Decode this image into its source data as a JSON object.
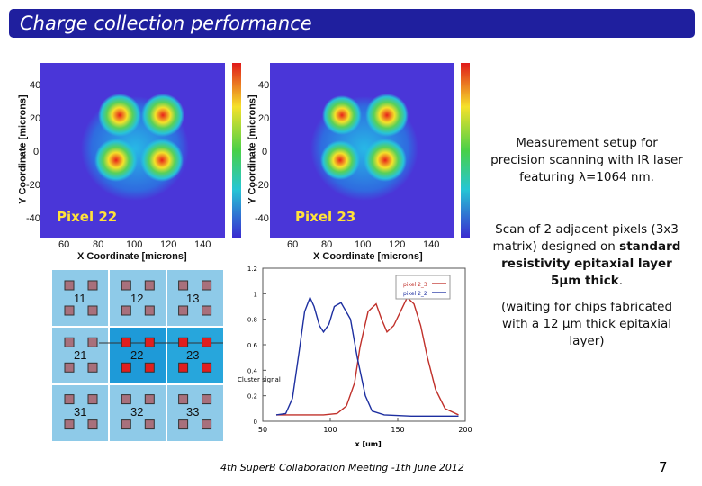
{
  "title": "Charge collection performance",
  "maps": {
    "left": {
      "label": "Pixel 22"
    },
    "right": {
      "label": "Pixel 23"
    },
    "y_ticks": [
      "40",
      "20",
      "0",
      "-20",
      "-40"
    ],
    "x_ticks": [
      "60",
      "80",
      "100",
      "120",
      "140"
    ],
    "xlabel": "X Coordinate [microns]",
    "ylabel": "Y Coordinate [microns]"
  },
  "matrix": {
    "labels": [
      "11",
      "12",
      "13",
      "21",
      "22",
      "23",
      "31",
      "32",
      "33"
    ]
  },
  "text": {
    "setup": "Measurement setup for precision scanning with IR laser featuring λ=1064 nm.",
    "scan_pre": "Scan of 2 adjacent pixels (3x3 matrix) designed on",
    "scan_bold": "standard resistivity epitaxial layer 5μm thick",
    "scan_post": ".",
    "waiting": "(waiting for chips fabricated with a 12 μm thick epitaxial layer)"
  },
  "footer": {
    "text": "4th SuperB Collaboration Meeting -1th June 2012",
    "page": "7"
  },
  "chart_data": {
    "type": "line",
    "xlabel": "x [um]",
    "ylabel": "",
    "xlim": [
      50,
      200
    ],
    "ylim": [
      0,
      1.2
    ],
    "x_ticks": [
      "50",
      "100",
      "150",
      "200"
    ],
    "y_ticks": [
      "0",
      "0.2",
      "0.4",
      "0.6",
      "0.8",
      "1",
      "1.2"
    ],
    "legend": [
      "pixel 2_3",
      "pixel 2_2"
    ],
    "annotation": "Cluster signal",
    "series": [
      {
        "name": "pixel 2_3",
        "color": "#c0302a",
        "x": [
          60,
          80,
          95,
          105,
          112,
          118,
          122,
          128,
          134,
          138,
          142,
          147,
          152,
          157,
          162,
          167,
          172,
          178,
          185,
          195
        ],
        "y": [
          0.05,
          0.05,
          0.05,
          0.06,
          0.12,
          0.3,
          0.58,
          0.86,
          0.92,
          0.8,
          0.7,
          0.75,
          0.86,
          0.97,
          0.92,
          0.75,
          0.5,
          0.25,
          0.1,
          0.05
        ]
      },
      {
        "name": "pixel 2_2",
        "color": "#1d2fa0",
        "x": [
          60,
          67,
          72,
          77,
          81,
          85,
          88,
          92,
          95,
          99,
          103,
          108,
          115,
          120,
          126,
          131,
          140,
          160,
          180,
          195
        ],
        "y": [
          0.05,
          0.06,
          0.18,
          0.55,
          0.86,
          0.97,
          0.9,
          0.75,
          0.7,
          0.76,
          0.9,
          0.93,
          0.8,
          0.5,
          0.2,
          0.08,
          0.05,
          0.04,
          0.04,
          0.04
        ]
      }
    ]
  }
}
